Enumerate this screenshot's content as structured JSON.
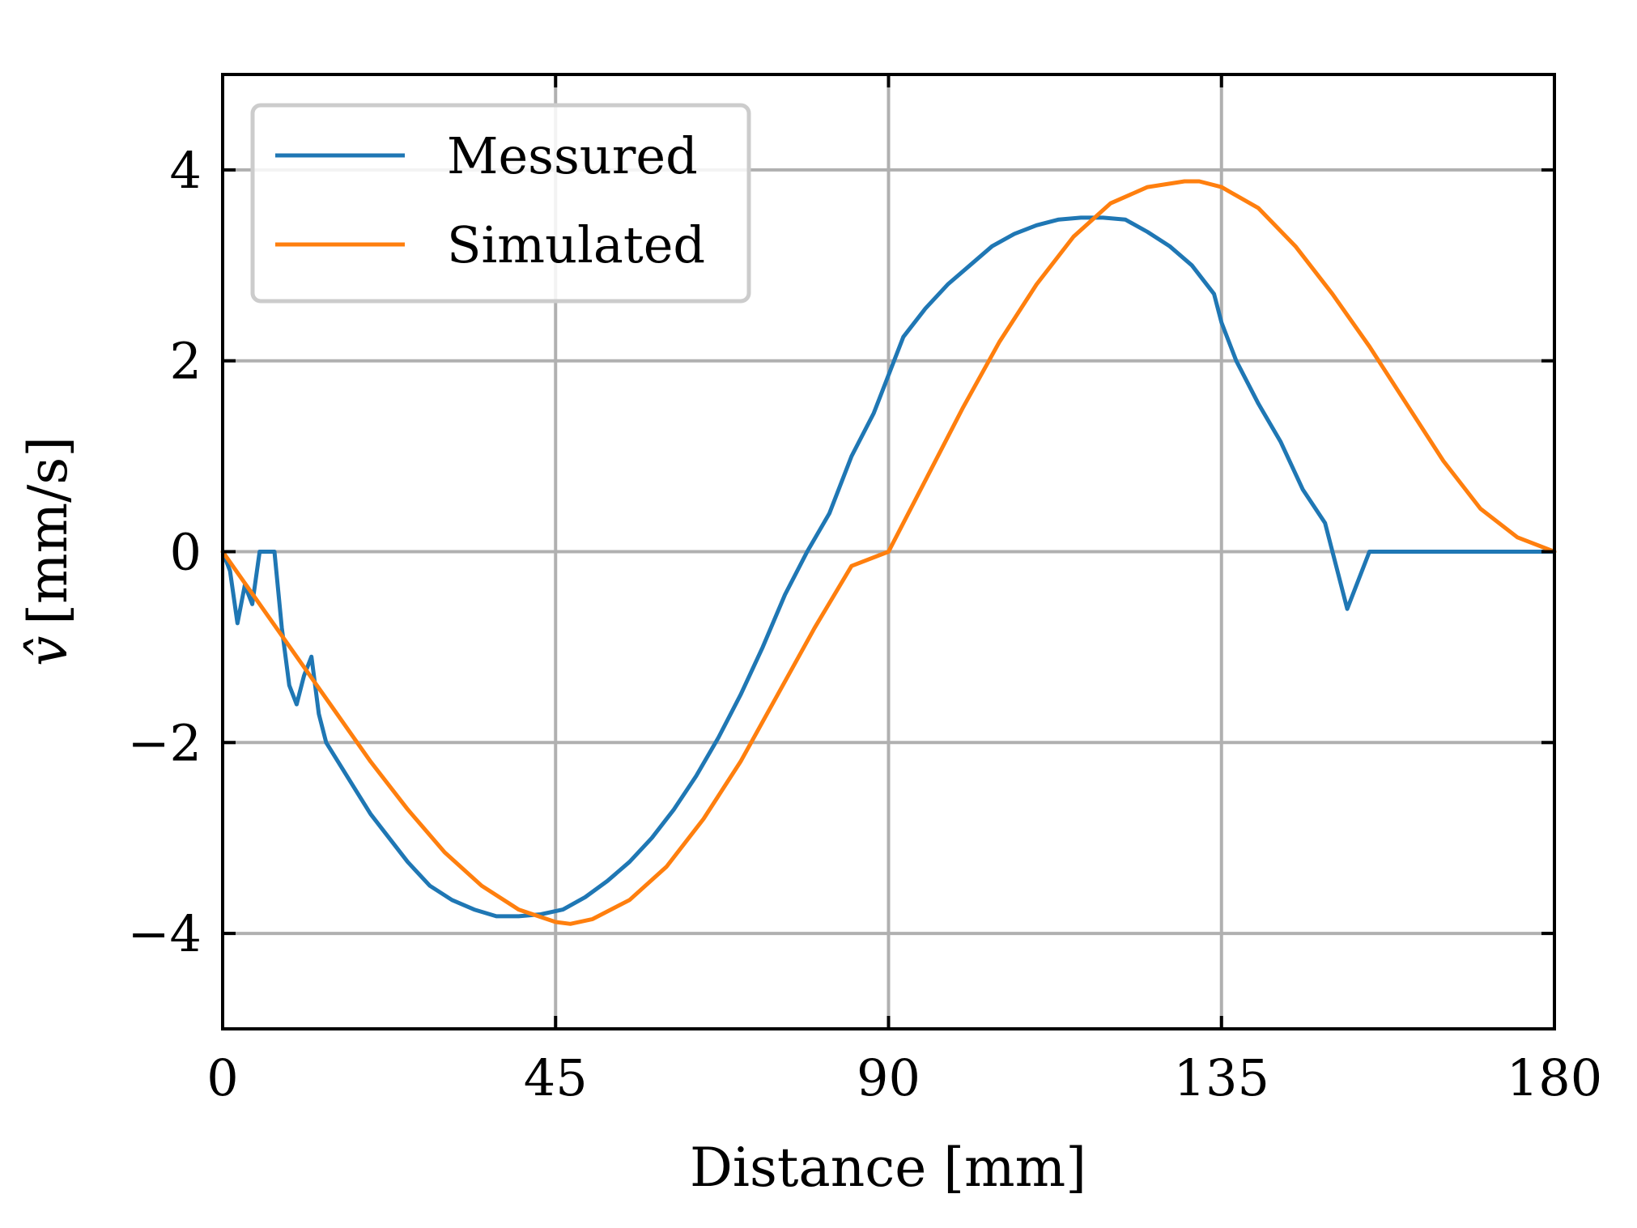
{
  "chart_data": {
    "type": "line",
    "title": "",
    "xlabel": "Distance [mm]",
    "ylabel": "v̂ [mm/s]",
    "ylabel_symbol": "v̂",
    "ylabel_unit": "[mm/s]",
    "xlim": [
      0,
      180
    ],
    "ylim": [
      -5,
      5
    ],
    "xticks": [
      0,
      45,
      90,
      135,
      180
    ],
    "xtick_labels": [
      "0",
      "45",
      "90",
      "135",
      "180"
    ],
    "yticks": [
      -4,
      -2,
      0,
      2,
      4
    ],
    "ytick_labels": [
      "−4",
      "−2",
      "0",
      "2",
      "4"
    ],
    "grid": true,
    "legend_position": "top-left",
    "series": [
      {
        "name": "Messured",
        "color": "#1f77b4",
        "x": [
          0,
          1,
          2,
          3,
          4,
          5,
          6,
          7,
          8,
          9,
          10,
          11,
          12,
          13,
          14,
          16,
          18,
          20,
          22,
          25,
          28,
          31,
          34,
          37,
          40,
          43,
          46,
          49,
          52,
          55,
          58,
          61,
          64,
          67,
          70,
          73,
          76,
          79,
          82,
          85,
          88,
          90,
          92,
          95,
          98,
          101,
          104,
          107,
          110,
          113,
          116,
          119,
          122,
          125,
          128,
          131,
          134,
          135,
          137,
          140,
          143,
          146,
          149,
          152,
          155,
          158,
          161,
          164,
          166,
          168,
          170,
          172,
          173,
          174.5,
          175,
          175.5,
          176,
          178,
          180
        ],
        "values": [
          0,
          -0.2,
          -0.75,
          -0.35,
          -0.55,
          0.0,
          0.0,
          0.0,
          -0.8,
          -1.4,
          -1.6,
          -1.3,
          -1.1,
          -1.7,
          -2.0,
          -2.25,
          -2.5,
          -2.75,
          -2.95,
          -3.25,
          -3.5,
          -3.65,
          -3.75,
          -3.82,
          -3.82,
          -3.8,
          -3.75,
          -3.62,
          -3.45,
          -3.25,
          -3.0,
          -2.7,
          -2.35,
          -1.95,
          -1.5,
          -1.0,
          -0.45,
          0.0,
          0.4,
          1.0,
          1.45,
          1.85,
          2.25,
          2.55,
          2.8,
          3.0,
          3.2,
          3.33,
          3.42,
          3.48,
          3.5,
          3.5,
          3.48,
          3.35,
          3.2,
          3.0,
          2.7,
          2.4,
          2.0,
          1.55,
          1.15,
          0.65,
          0.3,
          -0.6,
          0.0,
          0.0,
          0.0,
          0.0,
          0.0,
          0.0,
          0.0,
          0.0,
          0.0,
          0.0,
          0.0,
          0.0,
          0.0,
          0.0,
          0.0
        ]
      },
      {
        "name": "Simulated",
        "color": "#ff7f0e",
        "x": [
          0,
          5,
          10,
          15,
          20,
          25,
          30,
          35,
          40,
          45,
          47,
          50,
          55,
          60,
          65,
          70,
          75,
          80,
          85,
          90,
          95,
          100,
          105,
          110,
          115,
          120,
          125,
          130,
          132,
          135,
          140,
          145,
          150,
          155,
          160,
          165,
          170,
          175,
          180
        ],
        "values": [
          0,
          -0.55,
          -1.1,
          -1.65,
          -2.2,
          -2.7,
          -3.15,
          -3.5,
          -3.75,
          -3.88,
          -3.9,
          -3.85,
          -3.65,
          -3.3,
          -2.8,
          -2.2,
          -1.5,
          -0.8,
          -0.15,
          0.0,
          0.75,
          1.5,
          2.2,
          2.8,
          3.3,
          3.65,
          3.82,
          3.88,
          3.88,
          3.82,
          3.6,
          3.2,
          2.7,
          2.15,
          1.55,
          0.95,
          0.45,
          0.15,
          0.0
        ]
      }
    ]
  }
}
